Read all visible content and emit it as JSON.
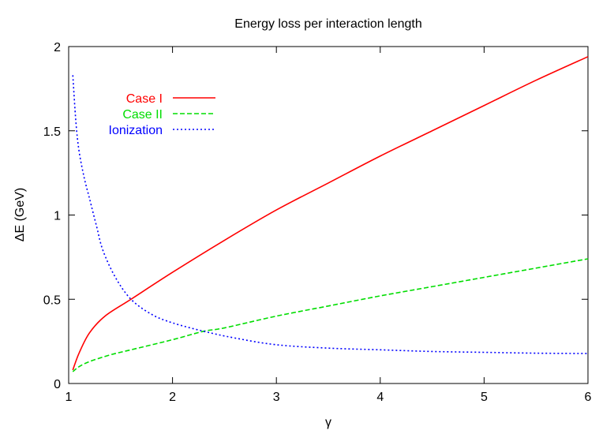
{
  "chart_data": {
    "type": "line",
    "title": "Energy loss per interaction length",
    "xlabel": "γ",
    "ylabel": "ΔE (GeV)",
    "xlim": [
      1,
      6
    ],
    "ylim": [
      0,
      2
    ],
    "xticks": [
      "1",
      "2",
      "3",
      "4",
      "5",
      "6"
    ],
    "yticks": [
      "0",
      "0.5",
      "1",
      "1.5",
      "2"
    ],
    "grid": false,
    "legend_position": "top-left",
    "series": [
      {
        "name": "Case I",
        "color": "#ff0000",
        "dash": "solid",
        "x": [
          1.04,
          1.1,
          1.2,
          1.35,
          1.6,
          2.0,
          2.5,
          3.0,
          3.5,
          4.0,
          4.5,
          5.0,
          5.5,
          6.0
        ],
        "y": [
          0.08,
          0.18,
          0.3,
          0.4,
          0.5,
          0.66,
          0.85,
          1.03,
          1.19,
          1.35,
          1.5,
          1.65,
          1.8,
          1.94
        ]
      },
      {
        "name": "Case II",
        "color": "#00dd00",
        "dash": "dashed",
        "x": [
          1.04,
          1.1,
          1.2,
          1.4,
          1.6,
          2.0,
          2.3,
          2.5,
          3.0,
          3.5,
          4.0,
          4.5,
          5.0,
          5.5,
          6.0
        ],
        "y": [
          0.07,
          0.1,
          0.13,
          0.17,
          0.2,
          0.26,
          0.31,
          0.33,
          0.4,
          0.46,
          0.52,
          0.575,
          0.63,
          0.685,
          0.74
        ]
      },
      {
        "name": "Ionization",
        "color": "#0000ff",
        "dash": "dotted",
        "x": [
          1.04,
          1.07,
          1.1,
          1.15,
          1.2,
          1.27,
          1.33,
          1.45,
          1.6,
          1.8,
          2.0,
          2.3,
          2.6,
          3.0,
          3.5,
          4.0,
          4.5,
          5.0,
          5.5,
          6.0
        ],
        "y": [
          1.83,
          1.55,
          1.38,
          1.22,
          1.1,
          0.93,
          0.79,
          0.63,
          0.5,
          0.41,
          0.36,
          0.31,
          0.27,
          0.23,
          0.21,
          0.2,
          0.19,
          0.185,
          0.18,
          0.178
        ]
      }
    ]
  }
}
